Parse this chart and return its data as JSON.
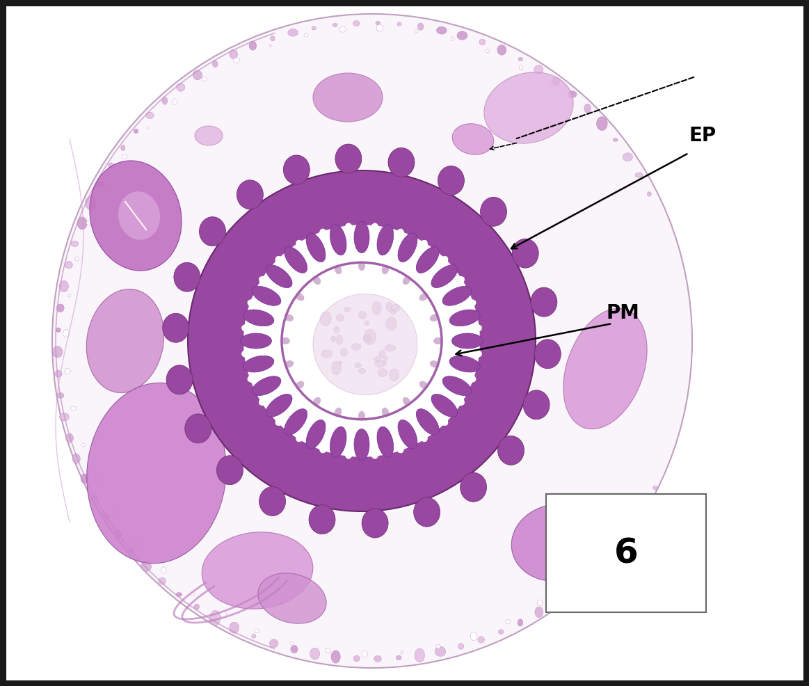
{
  "figure_width": 11.63,
  "figure_height": 9.86,
  "dpi": 100,
  "background_color": "#ffffff",
  "border_color": "#1a1a1a",
  "border_linewidth": 8,
  "label_EP": "EP",
  "label_PM": "PM",
  "label_number": "6",
  "label_EP_fontsize": 20,
  "label_PM_fontsize": 20,
  "number_fontsize": 36,
  "ep_ring_color": "#9b4fa0",
  "ep_ring_outer": "#7a3080",
  "ep_ring_light": "#c890c8",
  "lumen_white": "#f5f0f5",
  "lumen_center_color": "#e8d0e8",
  "pm_color": "#b878b8",
  "outer_body_bg": "#faf5fa",
  "outer_tissue_color": "#d4a0d4",
  "outer_membrane_color": "#c898c8",
  "vacuole_color": "#ffffff",
  "annotation_arrow_color": "#000000"
}
